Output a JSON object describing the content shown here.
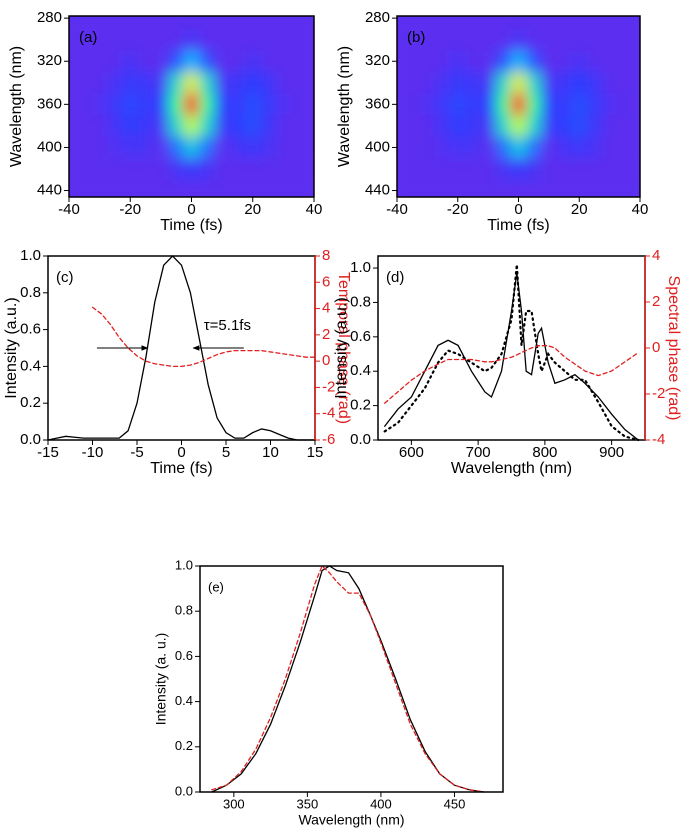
{
  "chart_data": [
    {
      "type": "heatmap",
      "label": "(a)",
      "xlabel": "Time (fs)",
      "ylabel": "Wavelength (nm)",
      "x": [
        -40,
        -35,
        -30,
        -25,
        -20,
        -15,
        -10,
        -5,
        0,
        5,
        10,
        15,
        20,
        25,
        30,
        35,
        40
      ],
      "y": [
        280,
        300,
        320,
        340,
        360,
        380,
        400,
        420,
        440
      ],
      "z": [
        [
          0,
          0,
          0,
          0,
          0,
          0,
          0,
          0,
          0,
          0,
          0,
          0,
          0,
          0,
          0,
          0,
          0
        ],
        [
          0,
          0,
          0,
          0,
          0,
          0,
          0,
          0,
          0.05,
          0,
          0,
          0,
          0,
          0,
          0,
          0,
          0
        ],
        [
          0,
          0,
          0,
          0,
          0.05,
          0,
          0,
          0.15,
          0.3,
          0.15,
          0,
          0,
          0.05,
          0,
          0,
          0,
          0
        ],
        [
          0,
          0,
          0,
          0.05,
          0.1,
          0.08,
          0.05,
          0.4,
          0.7,
          0.4,
          0.05,
          0.08,
          0.12,
          0.08,
          0,
          0,
          0
        ],
        [
          0,
          0,
          0.03,
          0.08,
          0.14,
          0.1,
          0.12,
          0.5,
          1,
          0.5,
          0.12,
          0.1,
          0.15,
          0.1,
          0.03,
          0,
          0
        ],
        [
          0,
          0,
          0,
          0.06,
          0.12,
          0.08,
          0.05,
          0.4,
          0.65,
          0.4,
          0.08,
          0.12,
          0.15,
          0.08,
          0,
          0,
          0
        ],
        [
          0,
          0,
          0,
          0.03,
          0.06,
          0.05,
          0,
          0.2,
          0.35,
          0.2,
          0,
          0.06,
          0.08,
          0.05,
          0,
          0,
          0
        ],
        [
          0,
          0,
          0,
          0,
          0,
          0,
          0,
          0.05,
          0.1,
          0.05,
          0,
          0,
          0,
          0,
          0,
          0,
          0
        ],
        [
          0,
          0,
          0,
          0,
          0,
          0,
          0,
          0,
          0,
          0,
          0,
          0,
          0,
          0,
          0,
          0,
          0
        ]
      ],
      "colormap": "jet",
      "xlim": [
        -40,
        40
      ],
      "xticks": [
        -40,
        -20,
        0,
        20,
        40
      ],
      "ylim": [
        278,
        446
      ],
      "y_reverse": true,
      "yticks": [
        280,
        320,
        360,
        400,
        440
      ]
    },
    {
      "type": "heatmap",
      "label": "(b)",
      "xlabel": "Time (fs)",
      "ylabel": "Wavelength (nm)",
      "x": [
        -40,
        -35,
        -30,
        -25,
        -20,
        -15,
        -10,
        -5,
        0,
        5,
        10,
        15,
        20,
        25,
        30,
        35,
        40
      ],
      "y": [
        280,
        300,
        320,
        340,
        360,
        380,
        400,
        420,
        440
      ],
      "z": [
        [
          0,
          0,
          0,
          0,
          0,
          0,
          0,
          0,
          0,
          0,
          0,
          0,
          0,
          0,
          0,
          0,
          0
        ],
        [
          0,
          0,
          0,
          0,
          0,
          0,
          0,
          0,
          0.05,
          0,
          0,
          0,
          0,
          0,
          0,
          0,
          0
        ],
        [
          0,
          0,
          0,
          0,
          0.05,
          0,
          0,
          0.15,
          0.3,
          0.15,
          0,
          0,
          0.05,
          0,
          0,
          0,
          0
        ],
        [
          0,
          0,
          0,
          0.05,
          0.1,
          0.08,
          0.05,
          0.4,
          0.7,
          0.4,
          0.05,
          0.08,
          0.12,
          0.08,
          0,
          0,
          0
        ],
        [
          0,
          0,
          0.03,
          0.08,
          0.14,
          0.1,
          0.12,
          0.5,
          1,
          0.5,
          0.12,
          0.1,
          0.15,
          0.1,
          0.03,
          0,
          0
        ],
        [
          0,
          0,
          0,
          0.06,
          0.12,
          0.08,
          0.05,
          0.4,
          0.65,
          0.4,
          0.08,
          0.12,
          0.15,
          0.08,
          0,
          0,
          0
        ],
        [
          0,
          0,
          0,
          0.03,
          0.06,
          0.05,
          0,
          0.2,
          0.35,
          0.2,
          0,
          0.06,
          0.08,
          0.05,
          0,
          0,
          0
        ],
        [
          0,
          0,
          0,
          0,
          0,
          0,
          0,
          0.05,
          0.1,
          0.05,
          0,
          0,
          0,
          0,
          0,
          0,
          0
        ],
        [
          0,
          0,
          0,
          0,
          0,
          0,
          0,
          0,
          0,
          0,
          0,
          0,
          0,
          0,
          0,
          0,
          0
        ]
      ],
      "colormap": "jet",
      "xlim": [
        -40,
        40
      ],
      "xticks": [
        -40,
        -20,
        0,
        20,
        40
      ],
      "ylim": [
        278,
        446
      ],
      "y_reverse": true,
      "yticks": [
        280,
        320,
        360,
        400,
        440
      ]
    },
    {
      "type": "line",
      "label": "(c)",
      "xlabel": "Time (fs)",
      "ylabel": "Intensity (a.u.)",
      "y2label": "Temporal phase (rad)",
      "annotation": "τ=5.1fs",
      "y2_color": "#e02020",
      "x": [
        -15,
        -14,
        -13,
        -12,
        -11,
        -10,
        -9,
        -8,
        -7,
        -6,
        -5,
        -4,
        -3,
        -2,
        -1,
        0,
        1,
        2,
        3,
        4,
        5,
        6,
        7,
        8,
        9,
        10,
        11,
        12,
        13,
        14,
        15
      ],
      "series": [
        {
          "color": "#000000",
          "linestyle": "solid",
          "values": [
            0,
            0.01,
            0.02,
            0.015,
            0.01,
            0.01,
            0.01,
            0.01,
            0.01,
            0.05,
            0.2,
            0.45,
            0.75,
            0.95,
            1,
            0.95,
            0.8,
            0.55,
            0.3,
            0.12,
            0.04,
            0.01,
            0.01,
            0.04,
            0.06,
            0.05,
            0.03,
            0.01,
            0,
            0,
            0
          ]
        },
        {
          "color": "#e02020",
          "linestyle": "dashed",
          "axis": "y2",
          "values": [
            null,
            null,
            null,
            null,
            null,
            4.1,
            3.6,
            2.8,
            1.8,
            1,
            0.4,
            0,
            -0.2,
            -0.3,
            -0.4,
            -0.4,
            -0.3,
            -0.1,
            0.2,
            0.5,
            0.7,
            0.8,
            0.8,
            0.8,
            0.8,
            0.7,
            0.6,
            0.5,
            0.4,
            0.3,
            0.3
          ]
        }
      ],
      "xlim": [
        -15,
        15
      ],
      "xticks": [
        -15,
        -10,
        -5,
        0,
        5,
        10,
        15
      ],
      "ylim": [
        0,
        1
      ],
      "yticks": [
        {
          "value": 0,
          "label": "0.0"
        },
        0.2,
        0.4,
        0.6,
        0.8,
        {
          "value": 1,
          "label": "1.0"
        }
      ],
      "y2lim": [
        -6,
        8
      ],
      "y2ticks": [
        -6,
        -4,
        -2,
        0,
        2,
        4,
        6,
        8
      ]
    },
    {
      "type": "line",
      "label": "(d)",
      "xlabel": "Wavelength (nm)",
      "ylabel": "Intensity (a.u.)",
      "y2label": "Spectral phase (rad)",
      "y2_color": "#e02020",
      "x": [
        560,
        580,
        600,
        620,
        640,
        655,
        670,
        690,
        710,
        720,
        735,
        750,
        758,
        765,
        772,
        780,
        790,
        795,
        805,
        815,
        830,
        845,
        860,
        880,
        900,
        920,
        940
      ],
      "series": [
        {
          "color": "#000000",
          "linestyle": "solid",
          "values": [
            0.08,
            0.18,
            0.25,
            0.4,
            0.55,
            0.58,
            0.55,
            0.4,
            0.28,
            0.25,
            0.4,
            0.75,
            0.97,
            0.75,
            0.4,
            0.38,
            0.62,
            0.65,
            0.45,
            0.33,
            0.35,
            0.38,
            0.33,
            0.25,
            0.15,
            0.06,
            0
          ]
        },
        {
          "color": "#000000",
          "linestyle": "dotted",
          "values": [
            0.05,
            0.1,
            0.2,
            0.3,
            0.45,
            0.52,
            0.5,
            0.45,
            0.4,
            0.42,
            0.5,
            0.7,
            1.02,
            0.55,
            0.75,
            0.75,
            0.5,
            0.4,
            0.5,
            0.45,
            0.4,
            0.35,
            0.35,
            0.22,
            0.08,
            0.02,
            0
          ]
        },
        {
          "color": "#e02020",
          "linestyle": "dashed",
          "axis": "y2",
          "values": [
            -2.4,
            -1.9,
            -1.4,
            -1,
            -0.7,
            -0.5,
            -0.5,
            -0.5,
            -0.6,
            -0.6,
            -0.5,
            -0.4,
            -0.3,
            -0.2,
            -0.1,
            0,
            0.1,
            0.1,
            0.1,
            0,
            -0.4,
            -0.7,
            -1,
            -1.2,
            -1,
            -0.6,
            -0.2
          ]
        }
      ],
      "xlim": [
        550,
        950
      ],
      "xticks": [
        600,
        700,
        800,
        900
      ],
      "ylim": [
        0,
        1.07
      ],
      "yticks": [
        {
          "value": 0,
          "label": "0.0"
        },
        0.2,
        0.4,
        0.6,
        0.8,
        {
          "value": 1,
          "label": "1.0"
        }
      ],
      "y2lim": [
        -4,
        4
      ],
      "y2ticks": [
        -4,
        -2,
        0,
        2,
        4
      ]
    },
    {
      "type": "line",
      "label": "(e)",
      "xlabel": "Wavelength (nm)",
      "ylabel": "Intensity (a. u.)",
      "x": [
        285,
        295,
        305,
        315,
        325,
        335,
        345,
        355,
        360,
        365,
        370,
        378,
        385,
        393,
        400,
        410,
        420,
        430,
        440,
        450,
        460,
        470
      ],
      "series": [
        {
          "color": "#000000",
          "linestyle": "solid",
          "values": [
            0,
            0.03,
            0.08,
            0.17,
            0.3,
            0.47,
            0.66,
            0.87,
            0.98,
            1,
            0.98,
            0.97,
            0.9,
            0.78,
            0.67,
            0.5,
            0.32,
            0.18,
            0.08,
            0.03,
            0.01,
            0
          ]
        },
        {
          "color": "#e02020",
          "linestyle": "dashed",
          "values": [
            0.01,
            0.03,
            0.09,
            0.19,
            0.33,
            0.5,
            0.7,
            0.92,
            1,
            0.97,
            0.93,
            0.88,
            0.88,
            0.78,
            0.66,
            0.48,
            0.3,
            0.17,
            0.08,
            0.03,
            0.01,
            0
          ]
        }
      ],
      "xlim": [
        277,
        483
      ],
      "xticks": [
        300,
        350,
        400,
        450
      ],
      "ylim": [
        0,
        1
      ],
      "yticks": [
        {
          "value": 0,
          "label": "0.0"
        },
        0.2,
        0.4,
        0.6,
        0.8,
        {
          "value": 1,
          "label": "1.0"
        }
      ]
    }
  ]
}
